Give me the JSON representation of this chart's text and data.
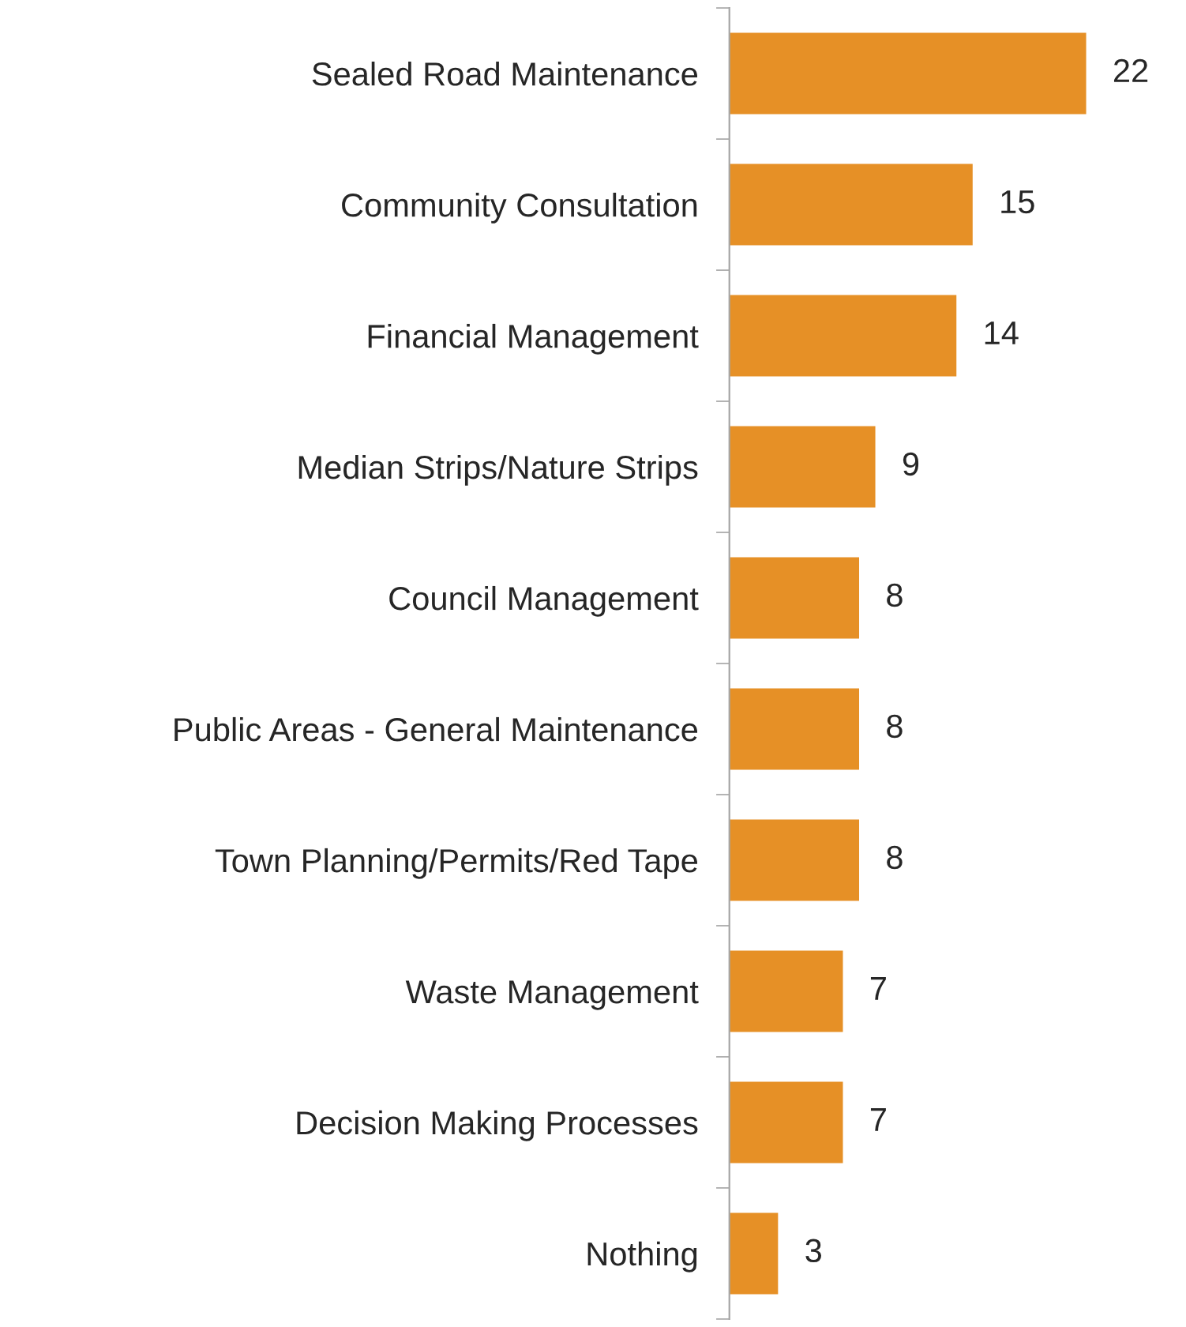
{
  "chart_data": {
    "type": "bar",
    "orientation": "horizontal",
    "data_labels": true,
    "categories": [
      "Sealed Road Maintenance",
      "Community Consultation",
      "Financial Management",
      "Median Strips/Nature Strips",
      "Council Management",
      "Public Areas - General Maintenance",
      "Town Planning/Permits/Red Tape",
      "Waste Management",
      "Decision Making Processes",
      "Nothing"
    ],
    "values": [
      22,
      15,
      14,
      9,
      8,
      8,
      8,
      7,
      7,
      3
    ],
    "color": "#e69026",
    "grid": false,
    "legend": false
  }
}
